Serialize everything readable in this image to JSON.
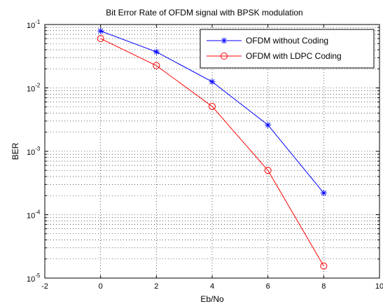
{
  "chart_data": {
    "type": "line",
    "title": "Bit Error Rate of OFDM  signal with BPSK modulation",
    "xlabel": "Eb/No",
    "ylabel": "BER",
    "xlim": [
      -2,
      10
    ],
    "ylim": [
      1e-05,
      0.1
    ],
    "yscale": "log",
    "grid": true,
    "legend_position": "top-right",
    "x_ticks": [
      -2,
      0,
      2,
      4,
      6,
      8,
      10
    ],
    "x_tick_labels": [
      "-2",
      "0",
      "2",
      "4",
      "6",
      "8",
      "10"
    ],
    "y_ticks": [
      1e-05,
      0.0001,
      0.001,
      0.01,
      0.1
    ],
    "y_tick_labels": [
      {
        "base": "10",
        "exp": "-5"
      },
      {
        "base": "10",
        "exp": "-4"
      },
      {
        "base": "10",
        "exp": "-3"
      },
      {
        "base": "10",
        "exp": "-2"
      },
      {
        "base": "10",
        "exp": "-1"
      }
    ],
    "series": [
      {
        "name": "OFDM without Coding",
        "color": "#0000ff",
        "marker": "asterisk",
        "x": [
          0,
          2,
          4,
          6,
          8
        ],
        "y": [
          0.079,
          0.037,
          0.0125,
          0.0026,
          0.00022
        ]
      },
      {
        "name": "OFDM with LDPC Coding",
        "color": "#ff0000",
        "marker": "circle",
        "x": [
          0,
          2,
          4,
          6,
          8
        ],
        "y": [
          0.06,
          0.0225,
          0.0051,
          0.0005,
          1.55e-05
        ]
      }
    ]
  }
}
